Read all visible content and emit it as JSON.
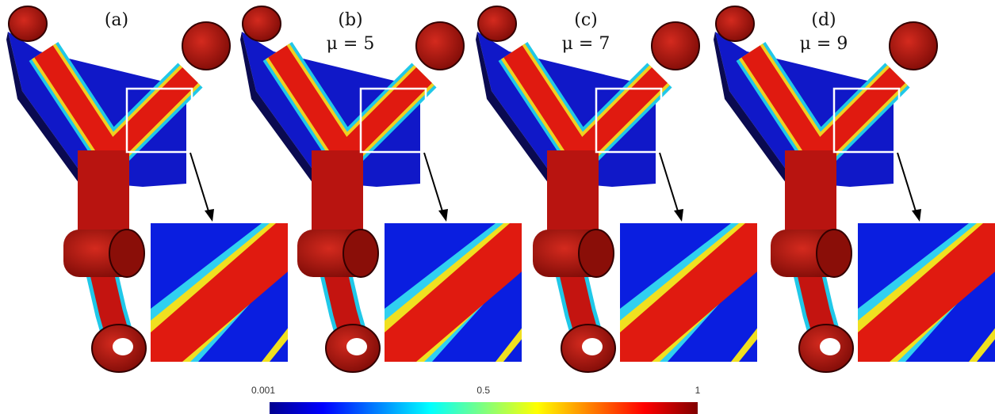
{
  "panels": [
    {
      "label": "(a)"
    },
    {
      "label": "(b)",
      "subtitle": "μ = 5"
    },
    {
      "label": "(c)",
      "subtitle": "μ = 7"
    },
    {
      "label": "(d)",
      "subtitle": "μ = 9"
    }
  ],
  "colorbar": {
    "ticks": [
      0.001,
      0.5,
      1
    ]
  }
}
